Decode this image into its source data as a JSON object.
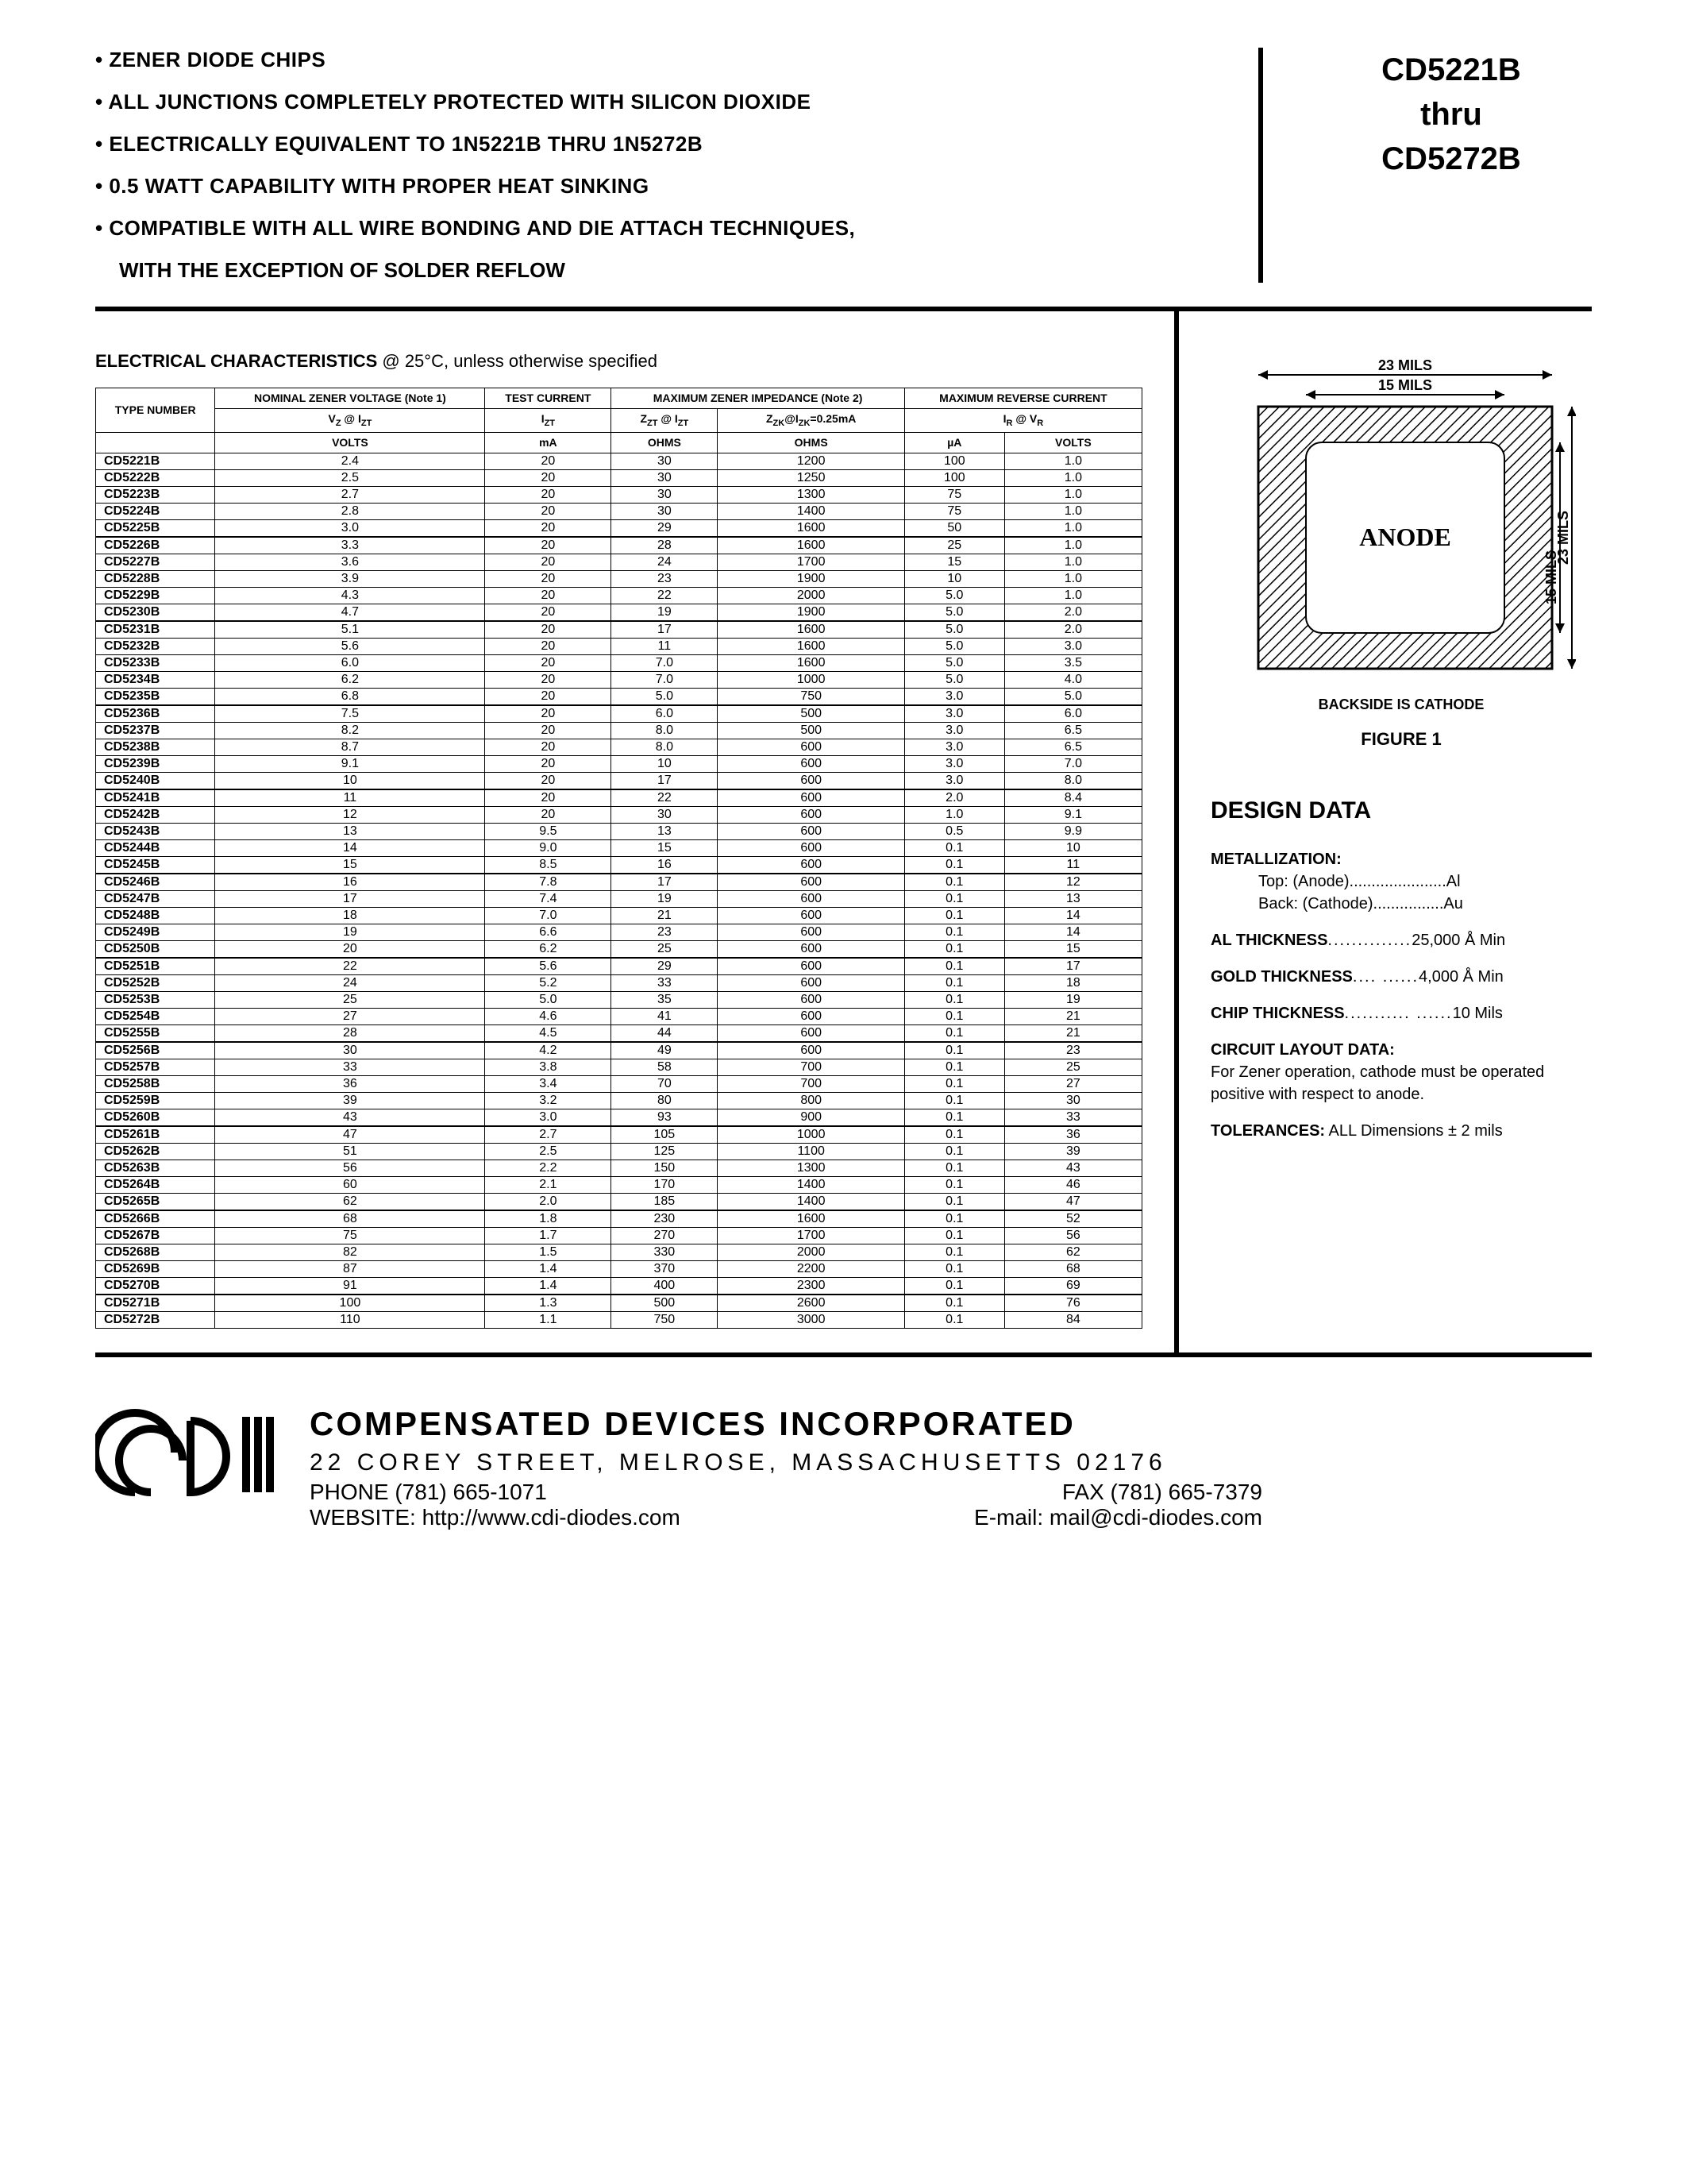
{
  "features": [
    "ZENER DIODE CHIPS",
    "ALL JUNCTIONS COMPLETELY PROTECTED WITH SILICON DIOXIDE",
    "ELECTRICALLY EQUIVALENT TO 1N5221B THRU 1N5272B",
    "0.5 WATT CAPABILITY WITH PROPER HEAT SINKING",
    "COMPATIBLE WITH ALL WIRE BONDING AND DIE ATTACH TECHNIQUES,"
  ],
  "features_cont": "WITH THE EXCEPTION OF SOLDER REFLOW",
  "part_header": {
    "line1": "CD5221B",
    "line2": "thru",
    "line3": "CD5272B"
  },
  "ec_title_bold": "ELECTRICAL CHARACTERISTICS",
  "ec_title_rest": " @ 25°C, unless otherwise specified",
  "table": {
    "headers": {
      "type": "TYPE NUMBER",
      "nominal": "NOMINAL ZENER VOLTAGE (Note 1)",
      "test": "TEST CURRENT",
      "maximp": "MAXIMUM ZENER IMPEDANCE (Note 2)",
      "maxrev": "MAXIMUM REVERSE CURRENT",
      "vz": "VZ @ IZT",
      "izt": "IZT",
      "zzt": "ZZT @ IZT",
      "zzk": "ZZK@IZK=0.25mA",
      "ir": "IR @ VR",
      "volts": "VOLTS",
      "ma": "mA",
      "ohms": "OHMS",
      "ua": "µA"
    },
    "groups": [
      [
        [
          "CD5221B",
          "2.4",
          "20",
          "30",
          "1200",
          "100",
          "1.0"
        ],
        [
          "CD5222B",
          "2.5",
          "20",
          "30",
          "1250",
          "100",
          "1.0"
        ],
        [
          "CD5223B",
          "2.7",
          "20",
          "30",
          "1300",
          "75",
          "1.0"
        ],
        [
          "CD5224B",
          "2.8",
          "20",
          "30",
          "1400",
          "75",
          "1.0"
        ],
        [
          "CD5225B",
          "3.0",
          "20",
          "29",
          "1600",
          "50",
          "1.0"
        ]
      ],
      [
        [
          "CD5226B",
          "3.3",
          "20",
          "28",
          "1600",
          "25",
          "1.0"
        ],
        [
          "CD5227B",
          "3.6",
          "20",
          "24",
          "1700",
          "15",
          "1.0"
        ],
        [
          "CD5228B",
          "3.9",
          "20",
          "23",
          "1900",
          "10",
          "1.0"
        ],
        [
          "CD5229B",
          "4.3",
          "20",
          "22",
          "2000",
          "5.0",
          "1.0"
        ],
        [
          "CD5230B",
          "4.7",
          "20",
          "19",
          "1900",
          "5.0",
          "2.0"
        ]
      ],
      [
        [
          "CD5231B",
          "5.1",
          "20",
          "17",
          "1600",
          "5.0",
          "2.0"
        ],
        [
          "CD5232B",
          "5.6",
          "20",
          "11",
          "1600",
          "5.0",
          "3.0"
        ],
        [
          "CD5233B",
          "6.0",
          "20",
          "7.0",
          "1600",
          "5.0",
          "3.5"
        ],
        [
          "CD5234B",
          "6.2",
          "20",
          "7.0",
          "1000",
          "5.0",
          "4.0"
        ],
        [
          "CD5235B",
          "6.8",
          "20",
          "5.0",
          "750",
          "3.0",
          "5.0"
        ]
      ],
      [
        [
          "CD5236B",
          "7.5",
          "20",
          "6.0",
          "500",
          "3.0",
          "6.0"
        ],
        [
          "CD5237B",
          "8.2",
          "20",
          "8.0",
          "500",
          "3.0",
          "6.5"
        ],
        [
          "CD5238B",
          "8.7",
          "20",
          "8.0",
          "600",
          "3.0",
          "6.5"
        ],
        [
          "CD5239B",
          "9.1",
          "20",
          "10",
          "600",
          "3.0",
          "7.0"
        ],
        [
          "CD5240B",
          "10",
          "20",
          "17",
          "600",
          "3.0",
          "8.0"
        ]
      ],
      [
        [
          "CD5241B",
          "11",
          "20",
          "22",
          "600",
          "2.0",
          "8.4"
        ],
        [
          "CD5242B",
          "12",
          "20",
          "30",
          "600",
          "1.0",
          "9.1"
        ],
        [
          "CD5243B",
          "13",
          "9.5",
          "13",
          "600",
          "0.5",
          "9.9"
        ],
        [
          "CD5244B",
          "14",
          "9.0",
          "15",
          "600",
          "0.1",
          "10"
        ],
        [
          "CD5245B",
          "15",
          "8.5",
          "16",
          "600",
          "0.1",
          "11"
        ]
      ],
      [
        [
          "CD5246B",
          "16",
          "7.8",
          "17",
          "600",
          "0.1",
          "12"
        ],
        [
          "CD5247B",
          "17",
          "7.4",
          "19",
          "600",
          "0.1",
          "13"
        ],
        [
          "CD5248B",
          "18",
          "7.0",
          "21",
          "600",
          "0.1",
          "14"
        ],
        [
          "CD5249B",
          "19",
          "6.6",
          "23",
          "600",
          "0.1",
          "14"
        ],
        [
          "CD5250B",
          "20",
          "6.2",
          "25",
          "600",
          "0.1",
          "15"
        ]
      ],
      [
        [
          "CD5251B",
          "22",
          "5.6",
          "29",
          "600",
          "0.1",
          "17"
        ],
        [
          "CD5252B",
          "24",
          "5.2",
          "33",
          "600",
          "0.1",
          "18"
        ],
        [
          "CD5253B",
          "25",
          "5.0",
          "35",
          "600",
          "0.1",
          "19"
        ],
        [
          "CD5254B",
          "27",
          "4.6",
          "41",
          "600",
          "0.1",
          "21"
        ],
        [
          "CD5255B",
          "28",
          "4.5",
          "44",
          "600",
          "0.1",
          "21"
        ]
      ],
      [
        [
          "CD5256B",
          "30",
          "4.2",
          "49",
          "600",
          "0.1",
          "23"
        ],
        [
          "CD5257B",
          "33",
          "3.8",
          "58",
          "700",
          "0.1",
          "25"
        ],
        [
          "CD5258B",
          "36",
          "3.4",
          "70",
          "700",
          "0.1",
          "27"
        ],
        [
          "CD5259B",
          "39",
          "3.2",
          "80",
          "800",
          "0.1",
          "30"
        ],
        [
          "CD5260B",
          "43",
          "3.0",
          "93",
          "900",
          "0.1",
          "33"
        ]
      ],
      [
        [
          "CD5261B",
          "47",
          "2.7",
          "105",
          "1000",
          "0.1",
          "36"
        ],
        [
          "CD5262B",
          "51",
          "2.5",
          "125",
          "1100",
          "0.1",
          "39"
        ],
        [
          "CD5263B",
          "56",
          "2.2",
          "150",
          "1300",
          "0.1",
          "43"
        ],
        [
          "CD5264B",
          "60",
          "2.1",
          "170",
          "1400",
          "0.1",
          "46"
        ],
        [
          "CD5265B",
          "62",
          "2.0",
          "185",
          "1400",
          "0.1",
          "47"
        ]
      ],
      [
        [
          "CD5266B",
          "68",
          "1.8",
          "230",
          "1600",
          "0.1",
          "52"
        ],
        [
          "CD5267B",
          "75",
          "1.7",
          "270",
          "1700",
          "0.1",
          "56"
        ],
        [
          "CD5268B",
          "82",
          "1.5",
          "330",
          "2000",
          "0.1",
          "62"
        ],
        [
          "CD5269B",
          "87",
          "1.4",
          "370",
          "2200",
          "0.1",
          "68"
        ],
        [
          "CD5270B",
          "91",
          "1.4",
          "400",
          "2300",
          "0.1",
          "69"
        ]
      ],
      [
        [
          "CD5271B",
          "100",
          "1.3",
          "500",
          "2600",
          "0.1",
          "76"
        ],
        [
          "CD5272B",
          "110",
          "1.1",
          "750",
          "3000",
          "0.1",
          "84"
        ]
      ]
    ]
  },
  "figure": {
    "outer_dim": "23 MILS",
    "inner_dim": "15 MILS",
    "center_label": "ANODE",
    "caption": "BACKSIDE IS CATHODE",
    "title": "FIGURE 1"
  },
  "design": {
    "title": "DESIGN DATA",
    "metallization_label": "METALLIZATION:",
    "met_top": "Top: (Anode)......................Al",
    "met_back": "Back: (Cathode)................Au",
    "al_line": "AL THICKNESS..............25,000 Å Min",
    "gold_line": "GOLD THICKNESS...........4,000 Å Min",
    "chip_line": "CHIP THICKNESS..................10 Mils",
    "circuit_label": "CIRCUIT LAYOUT DATA:",
    "circuit_text": "For Zener operation, cathode must be operated positive with respect to anode.",
    "tol_label": "TOLERANCES:",
    "tol_text": " ALL Dimensions ± 2 mils"
  },
  "footer": {
    "company": "COMPENSATED DEVICES INCORPORATED",
    "address": "22 COREY STREET, MELROSE, MASSACHUSETTS 02176",
    "phone": "PHONE (781) 665-1071",
    "fax": "FAX (781) 665-7379",
    "website": "WEBSITE:  http://www.cdi-diodes.com",
    "email": "E-mail: mail@cdi-diodes.com"
  }
}
